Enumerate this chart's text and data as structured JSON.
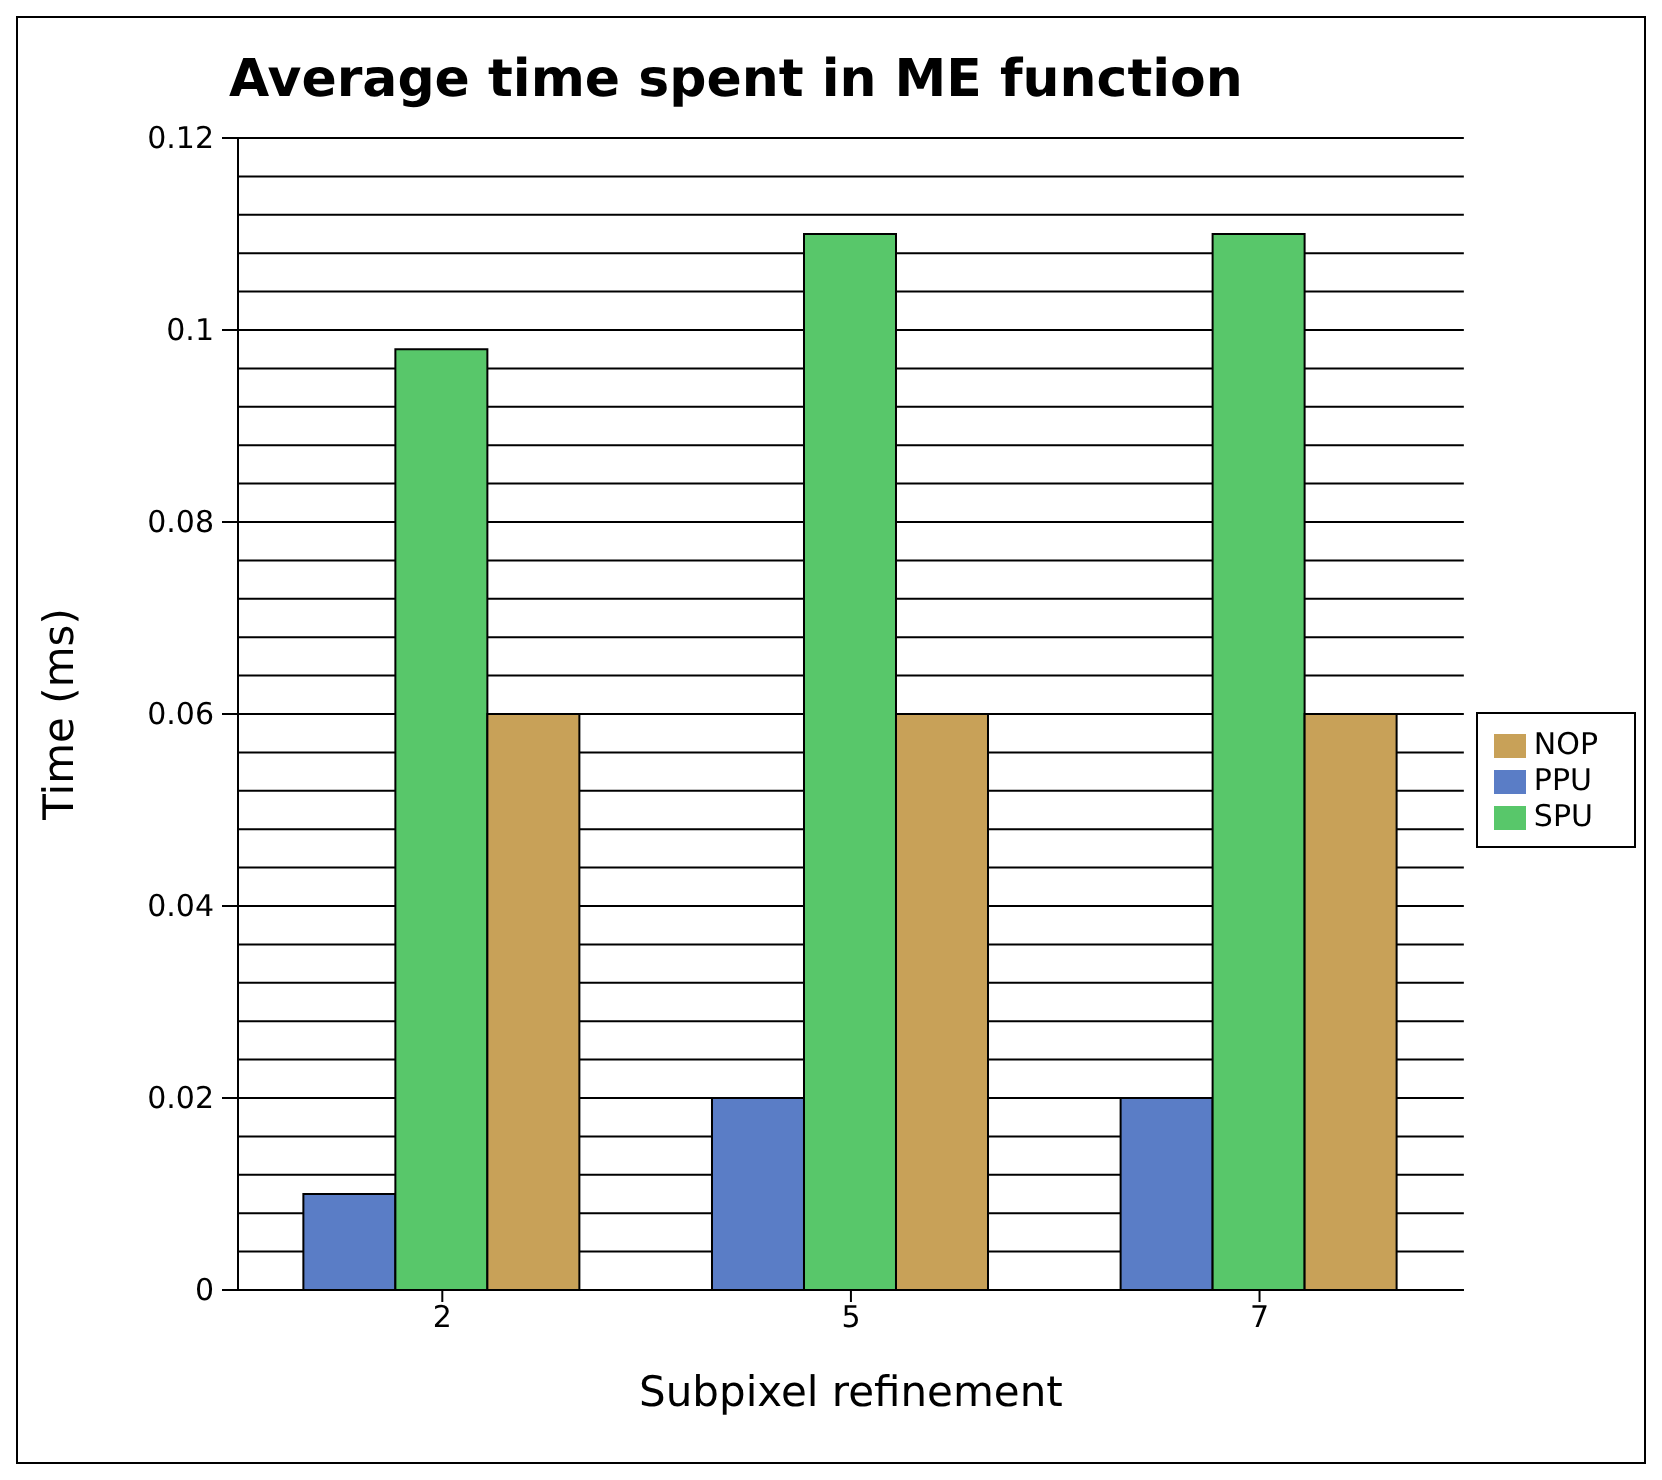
{
  "chart_data": {
    "type": "bar",
    "title": "Average time spent in ME function",
    "xlabel": "Subpixel refinement",
    "ylabel": "Time (ms)",
    "categories": [
      "2",
      "5",
      "7"
    ],
    "series": [
      {
        "name": "PPU",
        "color": "#5a7dc6",
        "values": [
          0.01,
          0.02,
          0.02
        ]
      },
      {
        "name": "SPU",
        "color": "#58c76a",
        "values": [
          0.098,
          0.11,
          0.11
        ]
      },
      {
        "name": "NOP",
        "color": "#c8a158",
        "values": [
          0.06,
          0.06,
          0.06
        ]
      }
    ],
    "ylim": [
      0,
      0.12
    ],
    "yticks": [
      0,
      {
        "value": 0.004,
        "label": null
      },
      {
        "value": 0.008,
        "label": null
      },
      {
        "value": 0.012,
        "label": null
      },
      {
        "value": 0.016,
        "label": null
      },
      0.02,
      {
        "value": 0.024,
        "label": null
      },
      {
        "value": 0.028,
        "label": null
      },
      {
        "value": 0.032,
        "label": null
      },
      {
        "value": 0.036,
        "label": null
      },
      0.04,
      {
        "value": 0.044,
        "label": null
      },
      {
        "value": 0.048,
        "label": null
      },
      {
        "value": 0.052,
        "label": null
      },
      {
        "value": 0.056,
        "label": null
      },
      0.06,
      {
        "value": 0.064,
        "label": null
      },
      {
        "value": 0.068,
        "label": null
      },
      {
        "value": 0.072,
        "label": null
      },
      {
        "value": 0.076,
        "label": null
      },
      0.08,
      {
        "value": 0.084,
        "label": null
      },
      {
        "value": 0.088,
        "label": null
      },
      {
        "value": 0.092,
        "label": null
      },
      {
        "value": 0.096,
        "label": null
      },
      0.1,
      {
        "value": 0.104,
        "label": null
      },
      {
        "value": 0.108,
        "label": null
      },
      {
        "value": 0.112,
        "label": null
      },
      {
        "value": 0.116,
        "label": null
      },
      0.12
    ],
    "grid": "y",
    "legend": "right"
  }
}
